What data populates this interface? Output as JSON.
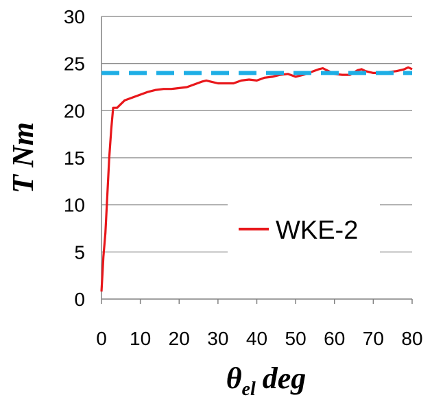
{
  "chart_data": {
    "type": "line",
    "title": "",
    "xlabel": {
      "main": "θ",
      "sub": "el",
      "unit": "deg"
    },
    "ylabel": "T Nm",
    "xlim": [
      0,
      80
    ],
    "ylim": [
      0,
      30
    ],
    "x_ticks": [
      0,
      10,
      20,
      30,
      40,
      50,
      60,
      70,
      80
    ],
    "y_ticks": [
      0,
      5,
      10,
      15,
      20,
      25,
      30
    ],
    "grid": {
      "horizontal": true,
      "vertical": false
    },
    "legend": {
      "placement": "middle-right",
      "entries": [
        "WKE-2"
      ]
    },
    "series": [
      {
        "name": "WKE-2",
        "color": "#e8171b",
        "style": "solid",
        "x": [
          0,
          0.5,
          1,
          1.5,
          2,
          2.5,
          3,
          4,
          5,
          6,
          8,
          10,
          12,
          14,
          16,
          18,
          20,
          22,
          24,
          26,
          27,
          28,
          30,
          32,
          34,
          36,
          38,
          40,
          42,
          44,
          46,
          48,
          50,
          52,
          54,
          56,
          57,
          58,
          60,
          62,
          64,
          66,
          67,
          68,
          70,
          72,
          74,
          76,
          78,
          79,
          80
        ],
        "y": [
          0.8,
          4.5,
          7,
          11,
          15,
          18,
          20.3,
          20.3,
          20.7,
          21.1,
          21.4,
          21.7,
          22.0,
          22.2,
          22.3,
          22.3,
          22.4,
          22.5,
          22.8,
          23.1,
          23.2,
          23.1,
          22.9,
          22.9,
          22.9,
          23.2,
          23.3,
          23.2,
          23.5,
          23.6,
          23.8,
          23.9,
          23.6,
          23.8,
          24.1,
          24.4,
          24.5,
          24.3,
          23.9,
          23.8,
          23.8,
          24.3,
          24.4,
          24.2,
          24.0,
          24.0,
          24.1,
          24.2,
          24.4,
          24.6,
          24.4
        ]
      },
      {
        "name": "",
        "color": "#1eaee5",
        "style": "dashed",
        "x": [
          0,
          80
        ],
        "y": [
          24,
          24
        ]
      }
    ]
  }
}
